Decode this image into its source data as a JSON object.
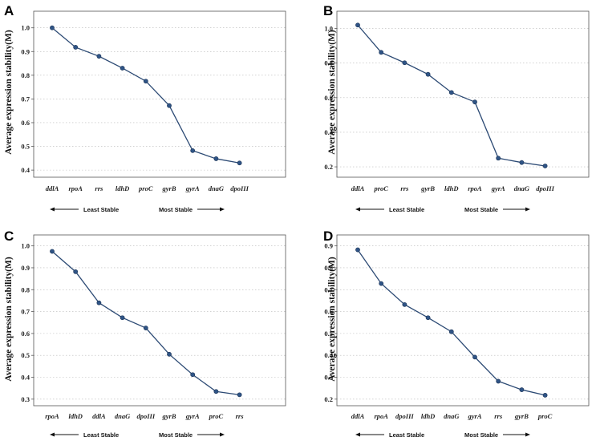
{
  "chart_data": [
    {
      "panel": "A",
      "type": "line",
      "ylabel": "Average expression stability(M)",
      "categories": [
        "ddlA",
        "rpoA",
        "rrs",
        "ldhD",
        "proC",
        "gyrB",
        "gyrA",
        "dnaG",
        "dpoIII"
      ],
      "values": [
        1.0,
        0.918,
        0.88,
        0.83,
        0.775,
        0.672,
        0.482,
        0.448,
        0.43
      ],
      "yticks": [
        "0.4",
        "0.5",
        "0.6",
        "0.7",
        "0.8",
        "0.9",
        "1.0"
      ],
      "ylim": [
        0.37,
        1.07
      ],
      "least_stable": "Least Stable",
      "most_stable": "Most Stable"
    },
    {
      "panel": "B",
      "type": "line",
      "ylabel": "Average expression stability(M)",
      "categories": [
        "ddlA",
        "proC",
        "rrs",
        "gyrB",
        "ldhD",
        "rpoA",
        "gyrA",
        "dnaG",
        "dpoIII"
      ],
      "values": [
        1.02,
        0.862,
        0.802,
        0.735,
        0.63,
        0.575,
        0.25,
        0.225,
        0.205
      ],
      "yticks": [
        "0.2",
        "0.4",
        "0.6",
        "0.8",
        "1.0"
      ],
      "ylim": [
        0.14,
        1.1
      ],
      "least_stable": "Least Stable",
      "most_stable": "Most Stable"
    },
    {
      "panel": "C",
      "type": "line",
      "ylabel": "Average expression stability(M)",
      "categories": [
        "rpoA",
        "ldhD",
        "ddlA",
        "dnaG",
        "dpoIII",
        "gyrB",
        "gyrA",
        "proC",
        "rrs"
      ],
      "values": [
        0.975,
        0.882,
        0.74,
        0.672,
        0.625,
        0.505,
        0.412,
        0.335,
        0.32
      ],
      "yticks": [
        "0.3",
        "0.4",
        "0.5",
        "0.6",
        "0.7",
        "0.8",
        "0.9",
        "1.0"
      ],
      "ylim": [
        0.27,
        1.05
      ],
      "least_stable": "Least Stable",
      "most_stable": "Most Stable"
    },
    {
      "panel": "D",
      "type": "line",
      "ylabel": "Average expression stability(M)",
      "categories": [
        "ddlA",
        "rpoA",
        "dpoIII",
        "ldhD",
        "dnaG",
        "gyrA",
        "rrs",
        "gyrB",
        "proC"
      ],
      "values": [
        0.882,
        0.728,
        0.632,
        0.572,
        0.508,
        0.392,
        0.282,
        0.243,
        0.218
      ],
      "yticks": [
        "0.2",
        "0.3",
        "0.4",
        "0.5",
        "0.6",
        "0.7",
        "0.8",
        "0.9"
      ],
      "ylim": [
        0.17,
        0.95
      ],
      "least_stable": "Least Stable",
      "most_stable": "Most Stable"
    }
  ],
  "colors": {
    "line": "#2c4a74",
    "marker": "#2f5486",
    "frame": "#555555",
    "grid": "#b8b8b8"
  }
}
